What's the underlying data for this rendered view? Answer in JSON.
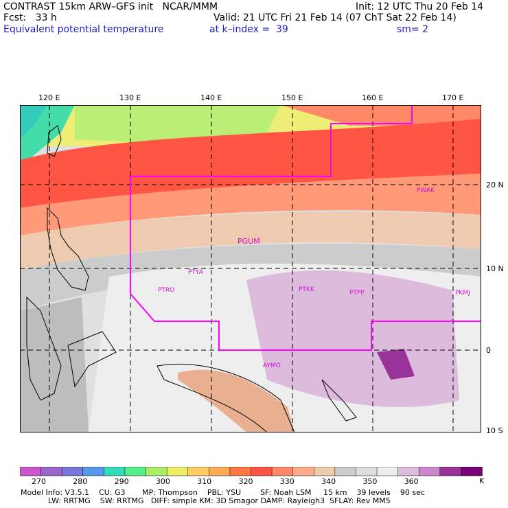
{
  "header": {
    "line1_left": "CONTRAST 15km ARW–GFS init   NCAR/MMM",
    "line1_right": "Init: 12 UTC Thu 20 Feb 14",
    "line2_left": "Fcst:   33 h",
    "line2_right": "Valid: 21 UTC Fri 21 Feb 14 (07 ChT Sat 22 Feb 14)",
    "line3_field": "Equivalent potential temperature",
    "line3_level": "at k–index =  39",
    "line3_smooth": "sm= 2"
  },
  "map": {
    "lon_labels": [
      "120 E",
      "130 E",
      "140 E",
      "150 E",
      "160 E",
      "170 E"
    ],
    "lat_labels": [
      "20 N",
      "10 N",
      "0",
      "10 S"
    ],
    "stations": [
      "PWAK",
      "PGUM",
      "PTYA",
      "PTRO",
      "PTKK",
      "PTPP",
      "PKMJ",
      "AYMO"
    ],
    "colors": {
      "boundary": "#ff00ff",
      "grid": "#000000"
    }
  },
  "colorbar": {
    "unit": "K",
    "ticks": [
      "270",
      "280",
      "290",
      "300",
      "310",
      "320",
      "330",
      "340",
      "350",
      "360"
    ],
    "colors": [
      "#cc55cc",
      "#9966cc",
      "#7777dd",
      "#5599ee",
      "#33ddbb",
      "#55ee88",
      "#aaee66",
      "#eeee66",
      "#ffcc66",
      "#ffaa55",
      "#ff7744",
      "#ff5544",
      "#ff8866",
      "#ffaa88",
      "#eeccaa",
      "#cccccc",
      "#dddddd",
      "#eeeeee",
      "#ddbbdd",
      "#cc88cc",
      "#993399",
      "#770077"
    ]
  },
  "model_info": {
    "line1": "Model Info: V3.5.1    CU: G3       MP: Thompson    PBL: YSU        SF: Noah LSM     15 km    39 levels    90 sec",
    "line2": "LW: RRTMG    SW: RRTMG   DIFF: simple KM: 3D Smagor DAMP: Rayleigh3  SFLAY: Rev MM5"
  }
}
